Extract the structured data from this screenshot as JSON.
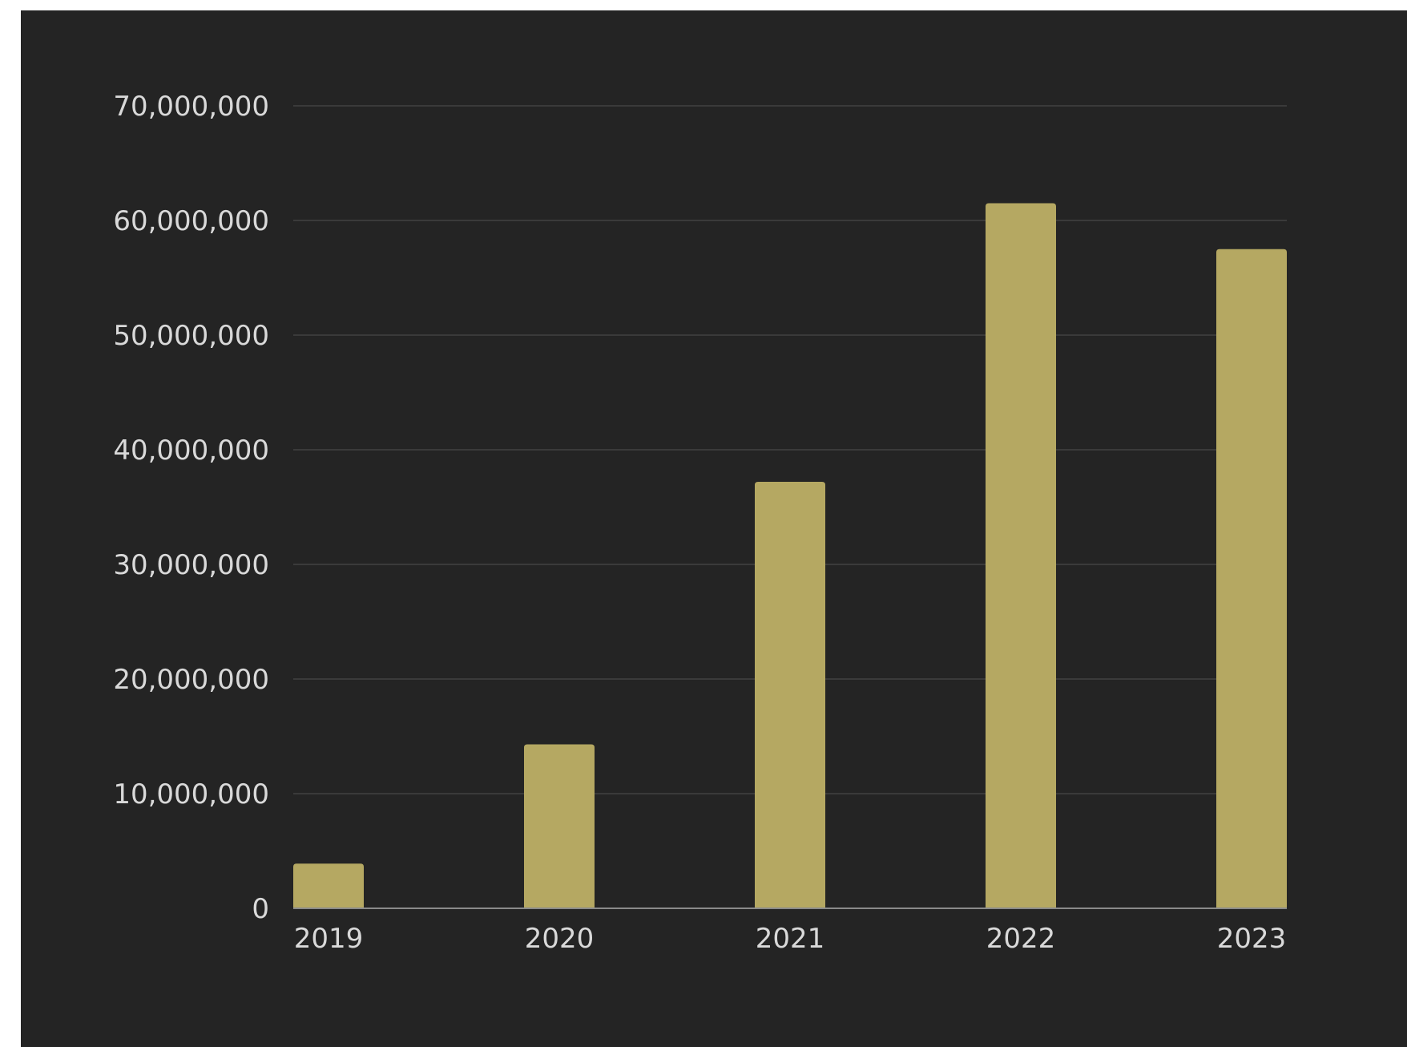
{
  "chart_data": {
    "type": "bar",
    "title": "",
    "xlabel": "",
    "ylabel": "",
    "categories": [
      "2019",
      "2020",
      "2021",
      "2022",
      "2023"
    ],
    "values": [
      3900000,
      14300000,
      37200000,
      61500000,
      57500000
    ],
    "ylim": [
      0,
      70000000
    ],
    "yticks": [
      0,
      10000000,
      20000000,
      30000000,
      40000000,
      50000000,
      60000000,
      70000000
    ],
    "ytick_labels": [
      "0",
      "10,000,000",
      "20,000,000",
      "30,000,000",
      "40,000,000",
      "50,000,000",
      "60,000,000",
      "70,000,000"
    ],
    "grid": true,
    "legend": "none"
  },
  "colors": {
    "background": "#242424",
    "bar": "#b5a862",
    "grid": "#3a3a3a",
    "axis": "#8a8a8a",
    "text": "#d9d9d9"
  }
}
